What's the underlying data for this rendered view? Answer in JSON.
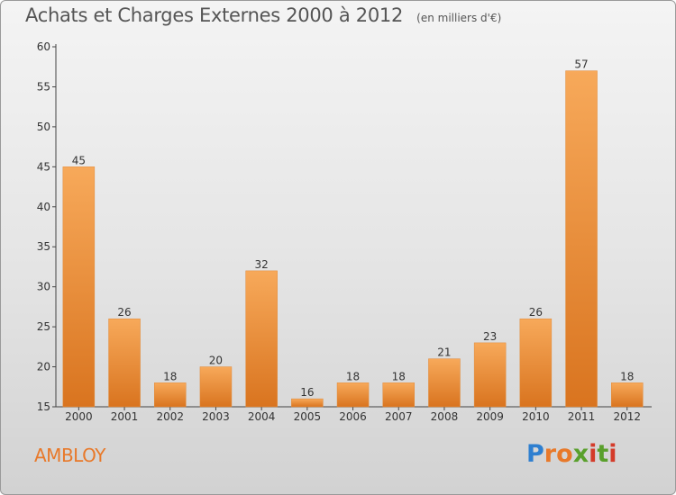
{
  "header": {
    "title": "Achats et Charges Externes 2000 à 2012",
    "unit": "(en milliers d'€)"
  },
  "place": "AMBLOY",
  "logo": {
    "text": "Proxiti",
    "colors": [
      "#2e7fd0",
      "#e8792a",
      "#5aa02c",
      "#d43b2a"
    ]
  },
  "colors": {
    "bar_light": "#f7a95a",
    "bar_dark": "#d9741f",
    "text": "#555555"
  },
  "chart_data": {
    "type": "bar",
    "categories": [
      "2000",
      "2001",
      "2002",
      "2003",
      "2004",
      "2005",
      "2006",
      "2007",
      "2008",
      "2009",
      "2010",
      "2011",
      "2012"
    ],
    "values": [
      45,
      26,
      18,
      20,
      32,
      16,
      18,
      18,
      21,
      23,
      26,
      57,
      18
    ],
    "data_labels": [
      "45",
      "26",
      "18",
      "20",
      "32",
      "16",
      "18",
      "18",
      "21",
      "23",
      "26",
      "57",
      "18"
    ],
    "ylim": [
      15,
      60
    ],
    "yticks": [
      15,
      20,
      25,
      30,
      35,
      40,
      45,
      50,
      55,
      60
    ],
    "grid": false,
    "title": "Achats et Charges Externes 2000 à 2012"
  }
}
